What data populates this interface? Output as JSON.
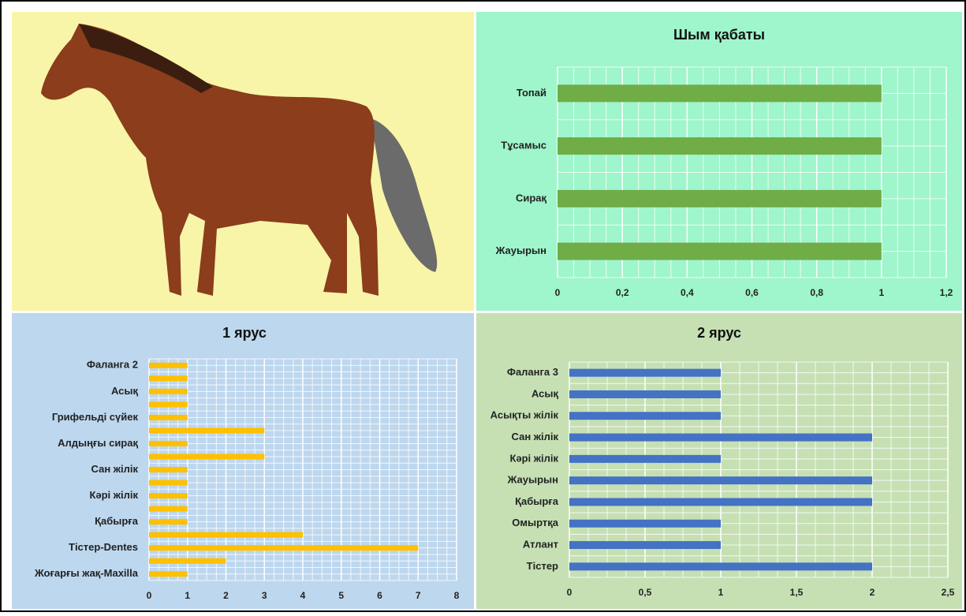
{
  "chart_data": [
    {
      "type": "bar",
      "title": "Шым қабаты",
      "categories": [
        "Топай",
        "Тұсамыс",
        "Сирақ",
        "Жауырын"
      ],
      "values": [
        1,
        1,
        1,
        1
      ],
      "color": "#70ad47",
      "xlim": [
        0,
        1.2
      ],
      "xticks": [
        0,
        {
          "value": 0.2,
          "label": "0,2"
        },
        {
          "value": 0.4,
          "label": "0,4"
        },
        {
          "value": 0.6,
          "label": "0,6"
        },
        {
          "value": 0.8,
          "label": "0,8"
        },
        1,
        {
          "value": 1.2,
          "label": "1,2"
        }
      ],
      "grid": true
    },
    {
      "type": "bar",
      "title": "1 ярус",
      "categories": [
        "Фаланга 2",
        null,
        "Асық",
        null,
        "Грифельді сүйек",
        null,
        "Алдыңғы сирақ",
        null,
        "Сан жілік",
        null,
        "Кәрі жілік",
        null,
        "Қабырға",
        null,
        "Тістер-Dentes",
        null,
        "Жоғарғы жақ-Maxilla"
      ],
      "values": [
        1,
        1,
        1,
        1,
        1,
        3,
        1,
        3,
        1,
        1,
        1,
        1,
        1,
        4,
        7,
        2,
        1
      ],
      "color": "#ffc000",
      "xlim": [
        0,
        8
      ],
      "xticks": [
        0,
        1,
        2,
        3,
        4,
        5,
        6,
        7,
        8
      ],
      "grid": true
    },
    {
      "type": "bar",
      "title": "2 ярус",
      "categories": [
        "Фаланга 3",
        "Асық",
        "Асықты жілік",
        "Сан жілік",
        "Кәрі жілік",
        "Жауырын",
        "Қабырға",
        "Омыртқа",
        "Атлант",
        "Тістер"
      ],
      "values": [
        1,
        1,
        1,
        2,
        1,
        2,
        2,
        1,
        1,
        2
      ],
      "color": "#4472c4",
      "xlim": [
        0,
        2.5
      ],
      "xticks": [
        0,
        {
          "value": 0.5,
          "label": "0,5"
        },
        1,
        {
          "value": 1.5,
          "label": "1,5"
        },
        2,
        {
          "value": 2.5,
          "label": "2,5"
        }
      ],
      "grid": true
    }
  ]
}
